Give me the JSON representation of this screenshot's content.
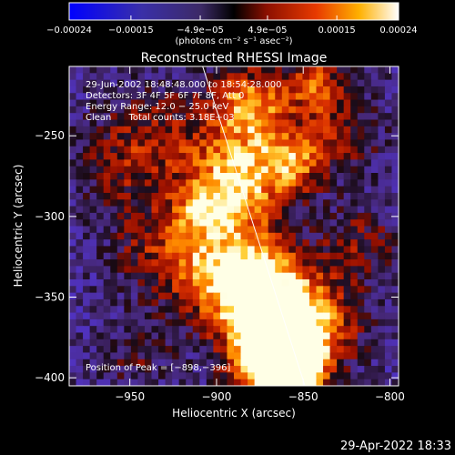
{
  "chart_data": {
    "type": "heatmap",
    "title": "Reconstructed RHESSI Image",
    "xlabel": "Heliocentric X (arcsec)",
    "ylabel": "Heliocentric Y (arcsec)",
    "xlim": [
      -985,
      -795
    ],
    "ylim": [
      -405,
      -207
    ],
    "x_ticks": [
      {
        "value": -950,
        "label": "−950"
      },
      {
        "value": -900,
        "label": "−900"
      },
      {
        "value": -850,
        "label": "−850"
      },
      {
        "value": -800,
        "label": "−800"
      }
    ],
    "y_ticks": [
      {
        "value": -250,
        "label": "−250"
      },
      {
        "value": -300,
        "label": "−300"
      },
      {
        "value": -350,
        "label": "−350"
      },
      {
        "value": -400,
        "label": "−400"
      }
    ],
    "colorbar": {
      "range": [
        -0.00024,
        0.00024
      ],
      "ticks": [
        {
          "value": -0.00024,
          "label": "−0.00024"
        },
        {
          "value": -0.00015,
          "label": "−0.00015"
        },
        {
          "value": -4.9e-05,
          "label": "−4.9e−05"
        },
        {
          "value": 4.9e-05,
          "label": "4.9e−05"
        },
        {
          "value": 0.00015,
          "label": "0.00015"
        },
        {
          "value": 0.00024,
          "label": "0.00024"
        }
      ],
      "units_label": "(photons cm⁻² s⁻¹ asec⁻²)"
    },
    "annotations": [
      "29-Jun-2002 18:48:48.000 to 18:54:28.000",
      "Detectors: 3F 4F 5F 6F 7F 8F, Att 0",
      "Energy Range: 12.0 − 25.0 keV",
      "Clean      Total counts: 3.18E+03"
    ],
    "peak_label": "Position of Peak = [−898,−396]",
    "peak": [
      -898,
      -396
    ],
    "limb_line": [
      [
        -908,
        -207
      ],
      [
        -849,
        -405
      ]
    ],
    "grid": false
  },
  "footer_timestamp": "29-Apr-2022 18:33"
}
